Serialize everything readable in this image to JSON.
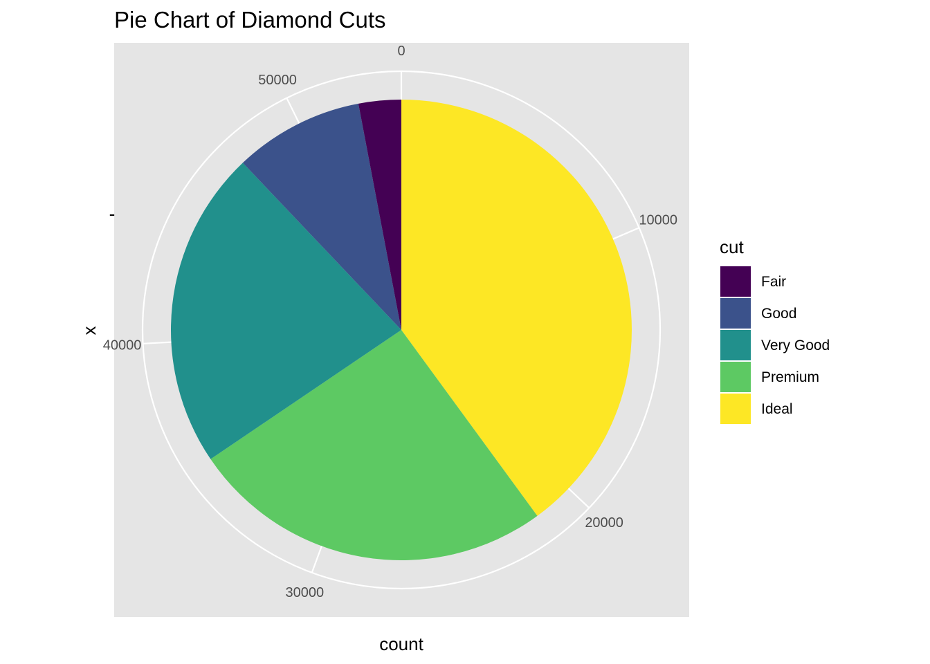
{
  "chart_data": {
    "type": "pie",
    "title": "Pie Chart of Diamond Cuts",
    "xlabel": "count",
    "ylabel": "x",
    "y_tick_label": "-",
    "categories": [
      "Fair",
      "Good",
      "Very Good",
      "Premium",
      "Ideal"
    ],
    "values": [
      1610,
      4906,
      12082,
      13791,
      21551
    ],
    "colors": [
      "#440154",
      "#3B528B",
      "#21908C",
      "#5DC963",
      "#FDE725"
    ],
    "radial_ticks": [
      0,
      10000,
      20000,
      30000,
      40000,
      50000
    ],
    "radial_tick_labels": [
      "0",
      "10000",
      "20000",
      "30000",
      "40000",
      "50000"
    ],
    "grid": true,
    "panel_background": "#E5E5E5",
    "legend": {
      "title": "cut",
      "placement": "right"
    }
  }
}
